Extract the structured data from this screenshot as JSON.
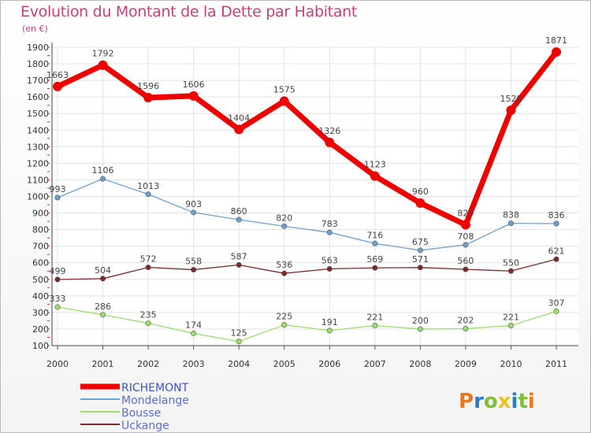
{
  "title": "Evolution du Montant de la Dette par Habitant",
  "unit": "(en €)",
  "logo": {
    "letters": [
      "P",
      "r",
      "o",
      "x",
      "i",
      "t",
      "i"
    ],
    "colors": [
      "#e87a1e",
      "#2b7cc2",
      "#7fbf3a",
      "#e8c21e",
      "#2b7cc2",
      "#7fbf3a",
      "#e87a1e"
    ]
  },
  "chart_data": {
    "type": "line",
    "x": [
      "2000",
      "2001",
      "2002",
      "2003",
      "2004",
      "2005",
      "2006",
      "2007",
      "2008",
      "2009",
      "2010",
      "2011"
    ],
    "ylim": [
      100,
      1900
    ],
    "yticks": [
      100,
      200,
      300,
      400,
      500,
      600,
      700,
      800,
      900,
      1000,
      1100,
      1200,
      1300,
      1400,
      1500,
      1600,
      1700,
      1800,
      1900
    ],
    "grid": true,
    "legend_position": "bottom-left",
    "series": [
      {
        "name": "RICHEMONT",
        "color": "#ee0000",
        "width": 7,
        "marker": 6,
        "values": [
          1663,
          1792,
          1596,
          1606,
          1404,
          1575,
          1326,
          1123,
          960,
          829,
          1520,
          1871
        ]
      },
      {
        "name": "Mondelange",
        "color": "#6d9fd0",
        "width": 1.3,
        "marker": 3.2,
        "values": [
          993,
          1106,
          1013,
          903,
          860,
          820,
          783,
          716,
          675,
          708,
          838,
          836
        ]
      },
      {
        "name": "Bousse",
        "color": "#98e06a",
        "width": 1.3,
        "marker": 3.2,
        "values": [
          333,
          286,
          235,
          174,
          125,
          225,
          191,
          221,
          200,
          202,
          221,
          307
        ]
      },
      {
        "name": "Uckange",
        "color": "#7a2a2a",
        "width": 1.3,
        "marker": 3.2,
        "values": [
          499,
          504,
          572,
          558,
          587,
          536,
          563,
          569,
          571,
          560,
          550,
          621
        ]
      }
    ]
  }
}
